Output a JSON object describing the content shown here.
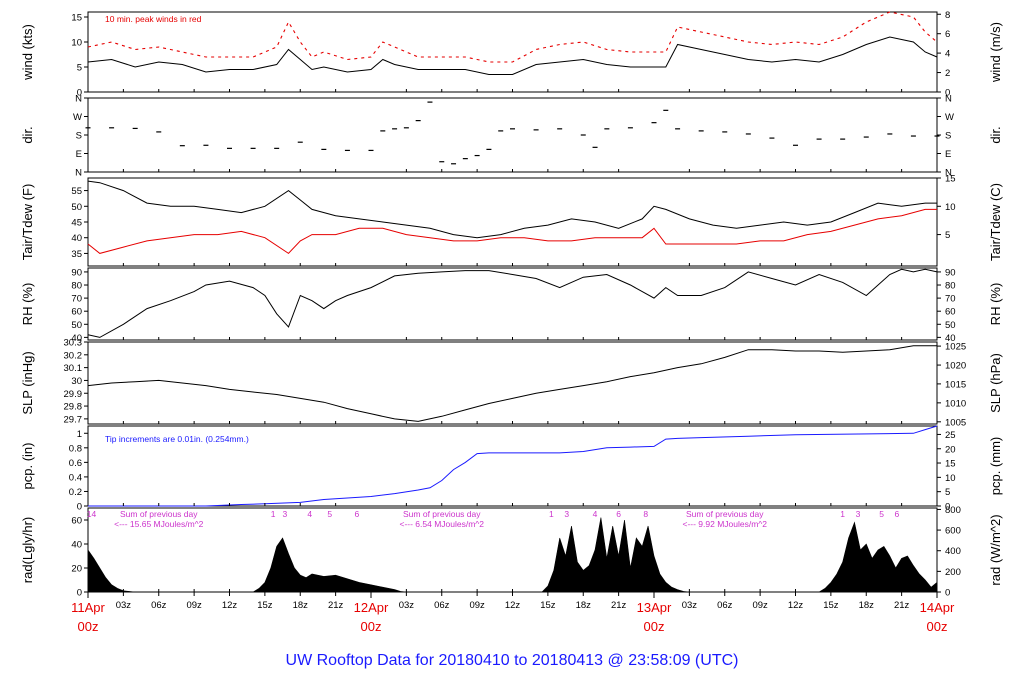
{
  "figure": {
    "title": "UW Rooftop Data for 20180410  to  20180413 @ 23:58:09  (UTC)",
    "day_labels": [
      {
        "date": "11Apr",
        "hour": "00z"
      },
      {
        "date": "12Apr",
        "hour": "00z"
      },
      {
        "date": "13Apr",
        "hour": "00z"
      },
      {
        "date": "14Apr",
        "hour": "00z"
      }
    ],
    "hour_ticks": [
      "03z",
      "06z",
      "09z",
      "12z",
      "15z",
      "18z",
      "21z",
      "03z",
      "06z",
      "09z",
      "12z",
      "15z",
      "18z",
      "21z",
      "03z",
      "06z",
      "09z",
      "12z",
      "15z",
      "18z",
      "21z"
    ],
    "hour_tick_hours": [
      3,
      6,
      9,
      12,
      15,
      18,
      21,
      27,
      30,
      33,
      36,
      39,
      42,
      45,
      51,
      54,
      57,
      60,
      63,
      66,
      69
    ],
    "wind_note": "10 min. peak winds in red",
    "pcp_note": "Tip increments are 0.01in. (0.254mm.)",
    "rad_notes": [
      {
        "line1": "Sum of previous day",
        "line2": "<--- 15.65 MJoules/m^2",
        "hour": 6
      },
      {
        "line1": "Sum of previous day",
        "line2": "<--- 6.54 MJoules/m^2",
        "hour": 30
      },
      {
        "line1": "Sum of previous day",
        "line2": "<--- 9.92 MJoules/m^2",
        "hour": 54
      }
    ],
    "uv_marks": [
      {
        "hour": 0.3,
        "text": "14"
      },
      {
        "hour": 15.7,
        "text": "1"
      },
      {
        "hour": 16.7,
        "text": "3"
      },
      {
        "hour": 18.8,
        "text": "4"
      },
      {
        "hour": 20.5,
        "text": "5"
      },
      {
        "hour": 22.8,
        "text": "6"
      },
      {
        "hour": 39.3,
        "text": "1"
      },
      {
        "hour": 40.6,
        "text": "3"
      },
      {
        "hour": 43.0,
        "text": "4"
      },
      {
        "hour": 45.0,
        "text": "6"
      },
      {
        "hour": 47.3,
        "text": "8"
      },
      {
        "hour": 64.0,
        "text": "1"
      },
      {
        "hour": 65.3,
        "text": "3"
      },
      {
        "hour": 67.3,
        "text": "5"
      },
      {
        "hour": 68.6,
        "text": "6"
      }
    ]
  },
  "chart_data": [
    {
      "type": "line",
      "panel": "wind",
      "ylabel": "wind (kts)",
      "ylabel_right": "wind (m/s)",
      "ylim": [
        0,
        16
      ],
      "yticks": [
        0,
        5,
        10,
        15
      ],
      "right_ticks": [
        {
          "label": "0",
          "value": 0
        },
        {
          "label": "2",
          "value": 3.89
        },
        {
          "label": "4",
          "value": 7.78
        },
        {
          "label": "6",
          "value": 11.66
        },
        {
          "label": "8",
          "value": 15.55
        }
      ],
      "x_hours": [
        0,
        2,
        4,
        6,
        8,
        10,
        12,
        14,
        16,
        17,
        18,
        19,
        20,
        22,
        24,
        25,
        26,
        28,
        30,
        32,
        34,
        36,
        38,
        40,
        42,
        44,
        46,
        48,
        49,
        50,
        52,
        54,
        56,
        58,
        60,
        62,
        64,
        66,
        68,
        70,
        71,
        72
      ],
      "series": [
        {
          "color": "#000000",
          "values": [
            6,
            6.5,
            5,
            6,
            5.5,
            4,
            4.5,
            4.5,
            5.5,
            8.5,
            6.5,
            4.5,
            5,
            4,
            4.5,
            6.5,
            5.5,
            4.5,
            4.5,
            4.5,
            3.5,
            3.5,
            5.5,
            6,
            6.5,
            5.5,
            5,
            5,
            5,
            9.5,
            8.5,
            7.5,
            6.5,
            6,
            6.5,
            6,
            7.5,
            9.5,
            11,
            10,
            8,
            7
          ]
        },
        {
          "color": "#e60000",
          "style": "dash",
          "values": [
            9,
            10,
            8.5,
            9,
            8,
            7,
            7,
            7,
            9,
            14,
            10,
            7,
            8,
            6.5,
            7,
            10,
            9,
            7,
            7,
            7,
            6,
            6,
            8.5,
            9.5,
            10,
            8.5,
            8,
            8,
            8,
            13,
            12,
            11,
            10,
            9.5,
            10,
            9.5,
            11,
            14,
            16,
            15,
            12,
            10
          ]
        }
      ]
    },
    {
      "type": "scatter",
      "panel": "dir",
      "ylabel": "dir.",
      "ylabel_right": "dir.",
      "ylim": [
        0,
        360
      ],
      "yticks": [
        {
          "label": "N",
          "value": 0
        },
        {
          "label": "E",
          "value": 90
        },
        {
          "label": "S",
          "value": 180
        },
        {
          "label": "W",
          "value": 270
        },
        {
          "label": "N",
          "value": 360
        }
      ],
      "x_hours": [
        0,
        2,
        4,
        6,
        8,
        10,
        12,
        14,
        16,
        18,
        20,
        22,
        24,
        25,
        26,
        27,
        28,
        29,
        30,
        31,
        32,
        33,
        34,
        35,
        36,
        38,
        40,
        42,
        43,
        44,
        46,
        48,
        49,
        50,
        52,
        54,
        56,
        58,
        60,
        62,
        64,
        66,
        68,
        70,
        72
      ],
      "series": [
        {
          "color": "#000000",
          "values": [
            215,
            215,
            212,
            195,
            128,
            130,
            115,
            115,
            115,
            145,
            110,
            105,
            105,
            200,
            210,
            215,
            250,
            340,
            50,
            40,
            65,
            80,
            110,
            200,
            210,
            205,
            210,
            180,
            120,
            210,
            215,
            240,
            300,
            210,
            200,
            195,
            185,
            165,
            130,
            160,
            160,
            170,
            185,
            175,
            175
          ]
        }
      ]
    },
    {
      "type": "line",
      "panel": "temp",
      "ylabel": "Tair/Tdew (F)",
      "ylabel_right": "Tair/Tdew (C)",
      "ylim": [
        31,
        59
      ],
      "yticks": [
        35,
        40,
        45,
        50,
        55
      ],
      "right_ticks": [
        {
          "label": "5",
          "value": 41
        },
        {
          "label": "10",
          "value": 50
        },
        {
          "label": "15",
          "value": 59
        }
      ],
      "x_hours": [
        0,
        1,
        3,
        5,
        7,
        9,
        11,
        13,
        15,
        17,
        18,
        19,
        21,
        23,
        25,
        27,
        29,
        31,
        33,
        35,
        37,
        39,
        41,
        43,
        45,
        47,
        48,
        49,
        51,
        53,
        55,
        57,
        59,
        61,
        63,
        65,
        67,
        69,
        71,
        72
      ],
      "series": [
        {
          "name": "Tair",
          "color": "#000000",
          "values": [
            58,
            57.5,
            55,
            51,
            50,
            50,
            49,
            48,
            50,
            55,
            52,
            49,
            47,
            46,
            45,
            44,
            43,
            41,
            40,
            41,
            43,
            44,
            46,
            45,
            43,
            46,
            50,
            49,
            46,
            44,
            43,
            44,
            45,
            44,
            45,
            48,
            51,
            50,
            51,
            51
          ]
        },
        {
          "name": "Tdew",
          "color": "#e60000",
          "values": [
            38,
            35,
            37,
            39,
            40,
            41,
            41,
            42,
            40,
            35,
            39,
            41,
            41,
            43,
            43,
            41,
            40,
            39,
            39,
            40,
            40,
            39,
            39,
            40,
            40,
            40,
            43,
            38,
            38,
            38,
            38,
            39,
            39,
            41,
            42,
            44,
            46,
            47,
            49,
            49
          ]
        }
      ]
    },
    {
      "type": "line",
      "panel": "rh",
      "ylabel": "RH (%)",
      "ylabel_right": "RH (%)",
      "ylim": [
        38,
        93
      ],
      "yticks": [
        40,
        50,
        60,
        70,
        80,
        90
      ],
      "x_hours": [
        0,
        1,
        3,
        5,
        7,
        9,
        10,
        12,
        14,
        15,
        16,
        17,
        18,
        19,
        20,
        21,
        22,
        24,
        26,
        28,
        30,
        32,
        34,
        36,
        38,
        40,
        42,
        44,
        46,
        47,
        48,
        49,
        50,
        52,
        54,
        56,
        58,
        60,
        62,
        64,
        66,
        68,
        69,
        70,
        71,
        72
      ],
      "series": [
        {
          "color": "#000000",
          "values": [
            42,
            40,
            50,
            62,
            68,
            75,
            80,
            83,
            78,
            72,
            58,
            48,
            72,
            68,
            62,
            68,
            72,
            78,
            87,
            89,
            90,
            91,
            91,
            88,
            85,
            78,
            86,
            88,
            80,
            75,
            70,
            78,
            72,
            72,
            78,
            90,
            85,
            80,
            88,
            82,
            72,
            88,
            92,
            90,
            92,
            90
          ]
        }
      ]
    },
    {
      "type": "line",
      "panel": "slp",
      "ylabel": "SLP (inHg)",
      "ylabel_right": "SLP (hPa)",
      "ylim": [
        29.66,
        30.3
      ],
      "yticks": [
        29.7,
        29.8,
        29.9,
        30.0,
        30.1,
        30.2,
        30.3
      ],
      "right_ticks": [
        {
          "label": "1005",
          "value": 29.677
        },
        {
          "label": "1010",
          "value": 29.825
        },
        {
          "label": "1015",
          "value": 29.973
        },
        {
          "label": "1020",
          "value": 30.12
        },
        {
          "label": "1025",
          "value": 30.268
        }
      ],
      "x_hours": [
        0,
        2,
        4,
        6,
        8,
        10,
        12,
        14,
        16,
        18,
        20,
        22,
        24,
        26,
        28,
        30,
        32,
        34,
        36,
        38,
        40,
        42,
        44,
        46,
        48,
        50,
        52,
        54,
        56,
        58,
        60,
        62,
        64,
        66,
        68,
        70,
        72
      ],
      "series": [
        {
          "color": "#000000",
          "values": [
            29.96,
            29.98,
            29.99,
            30.0,
            29.98,
            29.96,
            29.93,
            29.91,
            29.89,
            29.86,
            29.83,
            29.78,
            29.74,
            29.7,
            29.68,
            29.72,
            29.77,
            29.82,
            29.86,
            29.9,
            29.93,
            29.96,
            29.99,
            30.03,
            30.06,
            30.1,
            30.13,
            30.18,
            30.24,
            30.24,
            30.23,
            30.23,
            30.22,
            30.23,
            30.24,
            30.27,
            30.27
          ]
        }
      ]
    },
    {
      "type": "line",
      "panel": "pcp",
      "ylabel": "pcp. (in)",
      "ylabel_right": "pcp. (mm)",
      "ylim": [
        0,
        1.1
      ],
      "yticks": [
        0,
        0.2,
        0.4,
        0.6,
        0.8,
        1.0
      ],
      "right_ticks": [
        {
          "label": "0",
          "value": 0
        },
        {
          "label": "5",
          "value": 0.197
        },
        {
          "label": "10",
          "value": 0.394
        },
        {
          "label": "15",
          "value": 0.591
        },
        {
          "label": "20",
          "value": 0.787
        },
        {
          "label": "25",
          "value": 0.984
        }
      ],
      "x_hours": [
        0,
        10,
        13,
        15,
        18,
        20,
        22,
        24,
        26,
        28,
        29,
        30,
        31,
        32,
        33,
        34,
        40,
        42,
        44,
        46,
        48,
        49,
        50,
        52,
        56,
        60,
        70,
        71,
        72
      ],
      "series": [
        {
          "color": "#1a1aff",
          "values": [
            0,
            0,
            0.02,
            0.03,
            0.05,
            0.09,
            0.11,
            0.13,
            0.17,
            0.22,
            0.25,
            0.35,
            0.5,
            0.6,
            0.72,
            0.73,
            0.73,
            0.75,
            0.8,
            0.81,
            0.82,
            0.92,
            0.93,
            0.94,
            0.96,
            0.98,
            1.0,
            1.05,
            1.1
          ]
        }
      ]
    },
    {
      "type": "area",
      "panel": "rad",
      "ylabel": "rad(Lgly/hr)",
      "ylabel_right": "rad (W/m^2)",
      "ylim": [
        0,
        70
      ],
      "yticks": [
        0,
        20,
        40,
        60
      ],
      "right_ticks": [
        {
          "label": "0",
          "value": 0
        },
        {
          "label": "200",
          "value": 17.2
        },
        {
          "label": "400",
          "value": 34.4
        },
        {
          "label": "600",
          "value": 51.6
        },
        {
          "label": "800",
          "value": 68.8
        }
      ],
      "x_hours": [
        0,
        0.5,
        1,
        1.5,
        2,
        2.5,
        3,
        3.5,
        4,
        14,
        14.5,
        15,
        15.5,
        16,
        16.5,
        17,
        17.5,
        18,
        18.5,
        19,
        20,
        21,
        22,
        23,
        24,
        25,
        26,
        26.5,
        27,
        38.5,
        39,
        39.5,
        40,
        40.5,
        41,
        41.5,
        42,
        42.5,
        43,
        43.5,
        44,
        44.5,
        45,
        45.5,
        46,
        46.5,
        47,
        47.5,
        48,
        48.5,
        49,
        49.5,
        50,
        50.5,
        51,
        62,
        62.5,
        63,
        63.5,
        64,
        64.5,
        65,
        65.5,
        66,
        66.5,
        67,
        67.5,
        68,
        68.5,
        69,
        69.5,
        70,
        70.5,
        71,
        71.5,
        72
      ],
      "series": [
        {
          "color": "#000000",
          "values": [
            35,
            28,
            20,
            12,
            6,
            3,
            1,
            0.5,
            0,
            0,
            3,
            8,
            20,
            38,
            45,
            32,
            20,
            14,
            12,
            15,
            13,
            14,
            11,
            8,
            6,
            4,
            2,
            0.5,
            0,
            0,
            5,
            18,
            45,
            30,
            55,
            25,
            18,
            22,
            35,
            62,
            28,
            55,
            30,
            60,
            20,
            45,
            38,
            55,
            30,
            15,
            8,
            4,
            2,
            0.5,
            0,
            0,
            3,
            8,
            15,
            25,
            45,
            58,
            35,
            40,
            28,
            35,
            38,
            30,
            20,
            28,
            30,
            22,
            15,
            10,
            4,
            8
          ]
        }
      ]
    }
  ]
}
